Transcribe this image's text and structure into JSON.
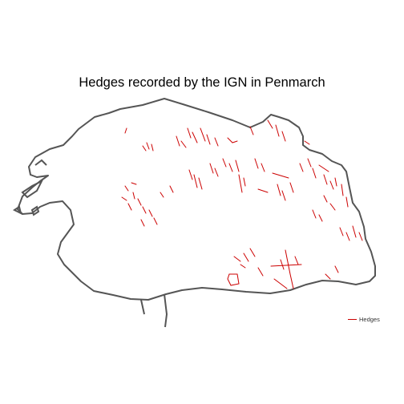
{
  "map": {
    "title": "Hedges recorded by the IGN in Penmarch",
    "legend": {
      "items": [
        {
          "label": "Hedges",
          "color": "#cc0000",
          "symbol": "line"
        }
      ],
      "placement": "bottom-right"
    },
    "colors": {
      "boundary": "#555555",
      "hedges": "#cc0000",
      "background": "#ffffff"
    }
  }
}
